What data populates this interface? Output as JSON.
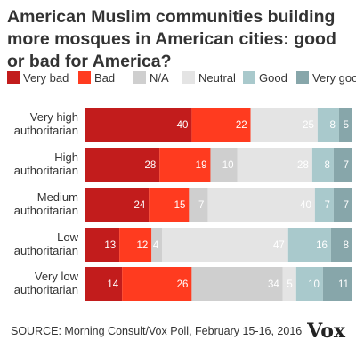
{
  "chart_data": {
    "type": "bar",
    "orientation": "horizontal",
    "stacked": true,
    "title": "American Muslim communities building more mosques in American cities: good or bad for America?",
    "title_lines": [
      "American Muslim communities building",
      "more mosques in American cities: good",
      "or bad for America?"
    ],
    "categories": [
      [
        "Very high",
        "authoritarian"
      ],
      [
        "High",
        "authoritarian"
      ],
      [
        "Medium",
        "authoritarian"
      ],
      [
        "Low",
        "authoritarian"
      ],
      [
        "Very low",
        "authoritarian"
      ]
    ],
    "series": [
      {
        "name": "Very bad",
        "color": "#c21c1c",
        "label_color": "#ffffff",
        "values": [
          40,
          28,
          24,
          13,
          14
        ]
      },
      {
        "name": "Bad",
        "color": "#ff3b1f",
        "label_color": "#ffffff",
        "values": [
          22,
          19,
          15,
          12,
          26
        ]
      },
      {
        "name": "N/A",
        "color": "#cfcfcf",
        "label_color": "#ffffff",
        "values": [
          0,
          10,
          7,
          4,
          34
        ]
      },
      {
        "name": "Neutral",
        "color": "#e4e4e4",
        "label_color": "#ffffff",
        "values": [
          25,
          28,
          40,
          47,
          5
        ]
      },
      {
        "name": "Good",
        "color": "#a9c9cc",
        "label_color": "#ffffff",
        "values": [
          8,
          8,
          7,
          16,
          10
        ]
      },
      {
        "name": "Very good",
        "color": "#87a6aa",
        "label_color": "#ffffff",
        "values": [
          5,
          7,
          7,
          8,
          11
        ]
      }
    ],
    "xlim": [
      0,
      100
    ],
    "legend_position": "top",
    "grid": false,
    "source": "SOURCE: Morning Consult/Vox Poll, February 15-16, 2016"
  },
  "logo": {
    "text": "Vox"
  }
}
